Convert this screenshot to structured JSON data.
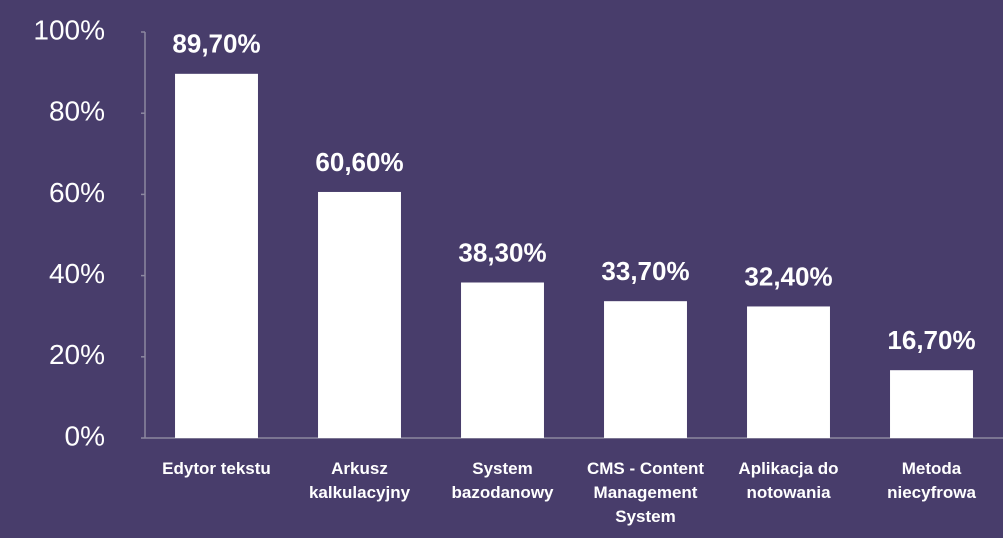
{
  "chart_data": {
    "type": "bar",
    "categories": [
      "Edytor tekstu",
      "Arkusz\nkalkulacyjny",
      "System\nbazodanowy",
      "CMS - Content\nManagement\nSystem",
      "Aplikacja do\nnotowania",
      "Metoda\nniecyfrowa"
    ],
    "values": [
      89.7,
      60.6,
      38.3,
      33.7,
      32.4,
      16.7
    ],
    "value_labels": [
      "89,70%",
      "60,60%",
      "38,30%",
      "33,70%",
      "32,40%",
      "16,70%"
    ],
    "color": "#ffffff",
    "ylim": [
      0,
      100
    ],
    "yticks": [
      {
        "value": 0,
        "label": "0%"
      },
      {
        "value": 20,
        "label": "20%"
      },
      {
        "value": 40,
        "label": "40%"
      },
      {
        "value": 60,
        "label": "60%"
      },
      {
        "value": 80,
        "label": "80%"
      },
      {
        "value": 100,
        "label": "100%"
      }
    ],
    "grid": false
  }
}
